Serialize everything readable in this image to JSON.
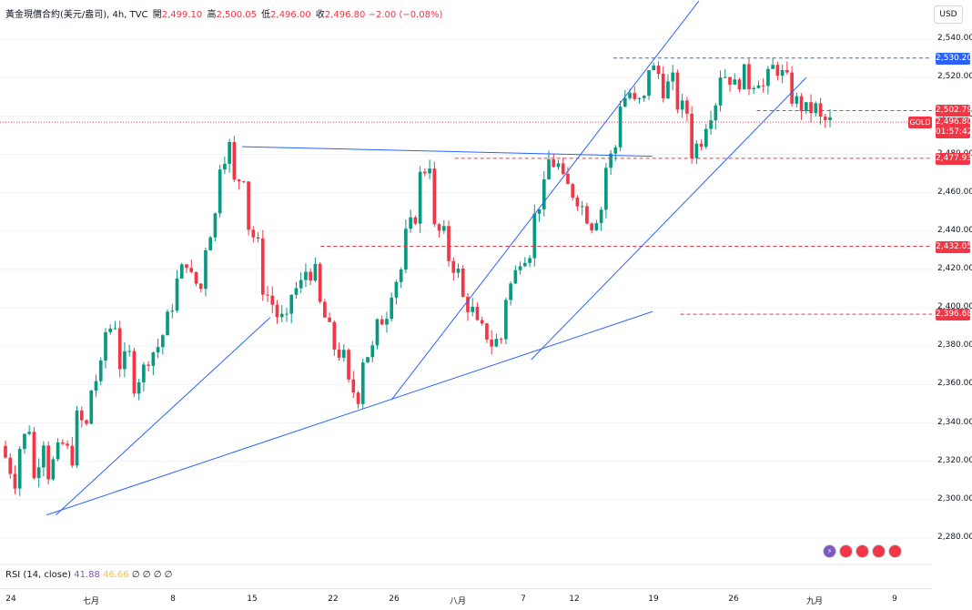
{
  "header": {
    "symbol": "黃金現價合約(美元/盎司), 4h, TVC",
    "open_label": "開",
    "open": "2,499.10",
    "high_label": "高",
    "high": "2,500.05",
    "low_label": "低",
    "low": "2,496.00",
    "close_label": "收",
    "close": "2,496.80",
    "change": "−2.00 (−0.08%)"
  },
  "currency": "USD",
  "symbol_tag": "GOLD",
  "price_labels": [
    {
      "text": "2,530.20",
      "value": 2530.2,
      "color": "#2962ff"
    },
    {
      "text": "2,502.79",
      "value": 2502.79,
      "color": "#f23645"
    },
    {
      "text": "2,477.93",
      "value": 2477.93,
      "color": "#f23645"
    },
    {
      "text": "2,432.05",
      "value": 2432.05,
      "color": "#f23645"
    },
    {
      "text": "2,396.68",
      "value": 2396.68,
      "color": "#f23645"
    }
  ],
  "last_price": {
    "price": "2,496.80",
    "countdown": "01:57:42",
    "value": 2496.8,
    "color": "#f23645"
  },
  "rsi": {
    "label": "RSI (14, close)",
    "v1": "41.88",
    "v2": "46.66",
    "extra": "∅ ∅ ∅ ∅"
  },
  "chart_data": {
    "type": "candlestick",
    "title": "黃金現價合約(美元/盎司), 4h, TVC",
    "timeframe": "4h",
    "ylim": [
      2270,
      2550
    ],
    "yticks": [
      2280,
      2300,
      2320,
      2340,
      2360,
      2380,
      2400,
      2420,
      2440,
      2460,
      2480,
      2500,
      2520,
      2540
    ],
    "ytick_labels": [
      "2,280.00",
      "2,300.00",
      "2,320.00",
      "2,340.00",
      "2,360.00",
      "2,380.00",
      "2,400.00",
      "2,420.00",
      "2,440.00",
      "2,460.00",
      "2,480.00",
      "2,500.00",
      "2,520.00",
      "2,540.00"
    ],
    "xticks": [
      "24",
      "七月",
      "8",
      "15",
      "22",
      "26",
      "八月",
      "7",
      "12",
      "19",
      "26",
      "九月",
      "9"
    ],
    "colors": {
      "up": "#089981",
      "down": "#f23645",
      "trend": "#2962ff"
    },
    "close_path": [
      [
        2328,
        2310
      ],
      [
        2322,
        2338
      ],
      [
        2300,
        2332
      ],
      [
        2308,
        2325
      ],
      [
        2332,
        2322
      ],
      [
        2345,
        2338
      ],
      [
        2352,
        2368
      ],
      [
        2385,
        2392
      ],
      [
        2368,
        2375
      ],
      [
        2356,
        2368
      ],
      [
        2372,
        2380
      ],
      [
        2378,
        2402
      ],
      [
        2408,
        2425
      ],
      [
        2418,
        2410
      ],
      [
        2425,
        2448
      ],
      [
        2472,
        2484
      ],
      [
        2462,
        2470
      ],
      [
        2448,
        2432
      ],
      [
        2415,
        2402
      ],
      [
        2398,
        2392
      ],
      [
        2405,
        2412
      ],
      [
        2420,
        2418
      ],
      [
        2408,
        2388
      ],
      [
        2382,
        2374
      ],
      [
        2362,
        2354
      ],
      [
        2372,
        2378
      ],
      [
        2386,
        2398
      ],
      [
        2405,
        2420
      ],
      [
        2432,
        2448
      ],
      [
        2465,
        2476
      ],
      [
        2442,
        2438
      ],
      [
        2430,
        2418
      ],
      [
        2408,
        2398
      ],
      [
        2392,
        2386
      ],
      [
        2380,
        2384
      ],
      [
        2400,
        2418
      ],
      [
        2425,
        2430
      ],
      [
        2440,
        2462
      ],
      [
        2478,
        2474
      ],
      [
        2468,
        2460
      ],
      [
        2462,
        2448
      ],
      [
        2440,
        2452
      ],
      [
        2468,
        2484
      ],
      [
        2505,
        2512
      ],
      [
        2505,
        2508
      ],
      [
        2528,
        2522
      ],
      [
        2512,
        2518
      ],
      [
        2508,
        2502
      ],
      [
        2478,
        2488
      ],
      [
        2492,
        2508
      ],
      [
        2524,
        2520
      ],
      [
        2512,
        2522
      ],
      [
        2515,
        2520
      ],
      [
        2510,
        2525
      ],
      [
        2528,
        2518
      ],
      [
        2512,
        2505
      ],
      [
        2502,
        2504
      ],
      [
        2498,
        2496.8
      ]
    ],
    "horizontal_levels": [
      {
        "value": 2530.2,
        "style": "dashed",
        "color": "#2962ff",
        "from": 0.658
      },
      {
        "value": 2502.79,
        "style": "dashed",
        "color": "#f23645",
        "from": 0.812
      },
      {
        "value": 2477.93,
        "style": "dashed",
        "color": "#f23645",
        "from": 0.488
      },
      {
        "value": 2432.05,
        "style": "dashed",
        "color": "#f23645",
        "from": 0.344
      },
      {
        "value": 2396.68,
        "style": "dashed",
        "color": "#f23645",
        "from": 0.73
      },
      {
        "value": 2496.8,
        "style": "dotted",
        "color": "#f23645",
        "from": 0.0
      }
    ],
    "trendlines": [
      {
        "from": [
          0.06,
          2292
        ],
        "to": [
          0.29,
          2395
        ]
      },
      {
        "from": [
          0.05,
          2292
        ],
        "to": [
          0.7,
          2398
        ]
      },
      {
        "from": [
          0.26,
          2484
        ],
        "to": [
          0.7,
          2479
        ]
      },
      {
        "from": [
          0.42,
          2352
        ],
        "to": [
          0.75,
          2560
        ]
      },
      {
        "from": [
          0.57,
          2373
        ],
        "to": [
          0.865,
          2520
        ]
      }
    ]
  }
}
